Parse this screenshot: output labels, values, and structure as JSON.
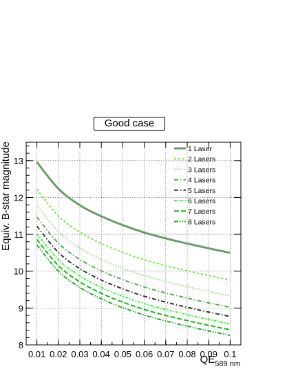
{
  "chart_data": {
    "type": "line",
    "title": "Good case",
    "xlabel": "QE",
    "xlabel_sub": "589 nm",
    "ylabel": "Equiv. B-star magnitude",
    "xlim": [
      0.005,
      0.105
    ],
    "ylim": [
      8,
      13.5
    ],
    "x_ticks": [
      "0.01",
      "0.02",
      "0.03",
      "0.04",
      "0.05",
      "0.06",
      "0.07",
      "0.08",
      "0.09",
      "0.1"
    ],
    "y_ticks": [
      "8",
      "9",
      "10",
      "11",
      "12",
      "13"
    ],
    "grid": true,
    "legend_position": "top-right",
    "x": [
      0.01,
      0.02,
      0.03,
      0.04,
      0.05,
      0.06,
      0.07,
      0.08,
      0.09,
      0.1
    ],
    "series": [
      {
        "name": "1 Laser",
        "color": "#6b9b6b",
        "style": "solid",
        "values": [
          12.96,
          12.24,
          11.79,
          11.49,
          11.25,
          11.05,
          10.89,
          10.75,
          10.62,
          10.5
        ]
      },
      {
        "name": "2 Lasers",
        "color": "#66ee33",
        "style": "dash",
        "values": [
          12.22,
          11.5,
          11.06,
          10.75,
          10.51,
          10.31,
          10.15,
          10.01,
          9.88,
          9.76
        ]
      },
      {
        "name": "3 Lasers",
        "color": "#99dd88",
        "style": "dot",
        "values": [
          11.79,
          11.07,
          10.63,
          10.32,
          10.08,
          9.88,
          9.72,
          9.58,
          9.45,
          9.33
        ]
      },
      {
        "name": "4 Lasers",
        "color": "#55aa55",
        "style": "dashdot",
        "values": [
          11.47,
          10.76,
          10.32,
          10.01,
          9.77,
          9.57,
          9.41,
          9.27,
          9.14,
          9.02
        ]
      },
      {
        "name": "5 Lasers",
        "color": "#333333",
        "style": "dashdot",
        "values": [
          11.22,
          10.51,
          10.07,
          9.76,
          9.52,
          9.32,
          9.16,
          9.02,
          8.89,
          8.77
        ]
      },
      {
        "name": "6 Lasers",
        "color": "#33ff33",
        "style": "dashdot2",
        "values": [
          11.02,
          10.31,
          9.87,
          9.56,
          9.32,
          9.12,
          8.96,
          8.82,
          8.69,
          8.57
        ]
      },
      {
        "name": "7 Lasers",
        "color": "#11bb11",
        "style": "longdash",
        "values": [
          10.86,
          10.15,
          9.71,
          9.4,
          9.16,
          8.96,
          8.8,
          8.66,
          8.53,
          8.41
        ]
      },
      {
        "name": "8 Lasers",
        "color": "#22aa22",
        "style": "dashdotdot",
        "values": [
          10.71,
          10.0,
          9.56,
          9.25,
          9.01,
          8.81,
          8.65,
          8.51,
          8.38,
          8.26
        ]
      }
    ]
  }
}
